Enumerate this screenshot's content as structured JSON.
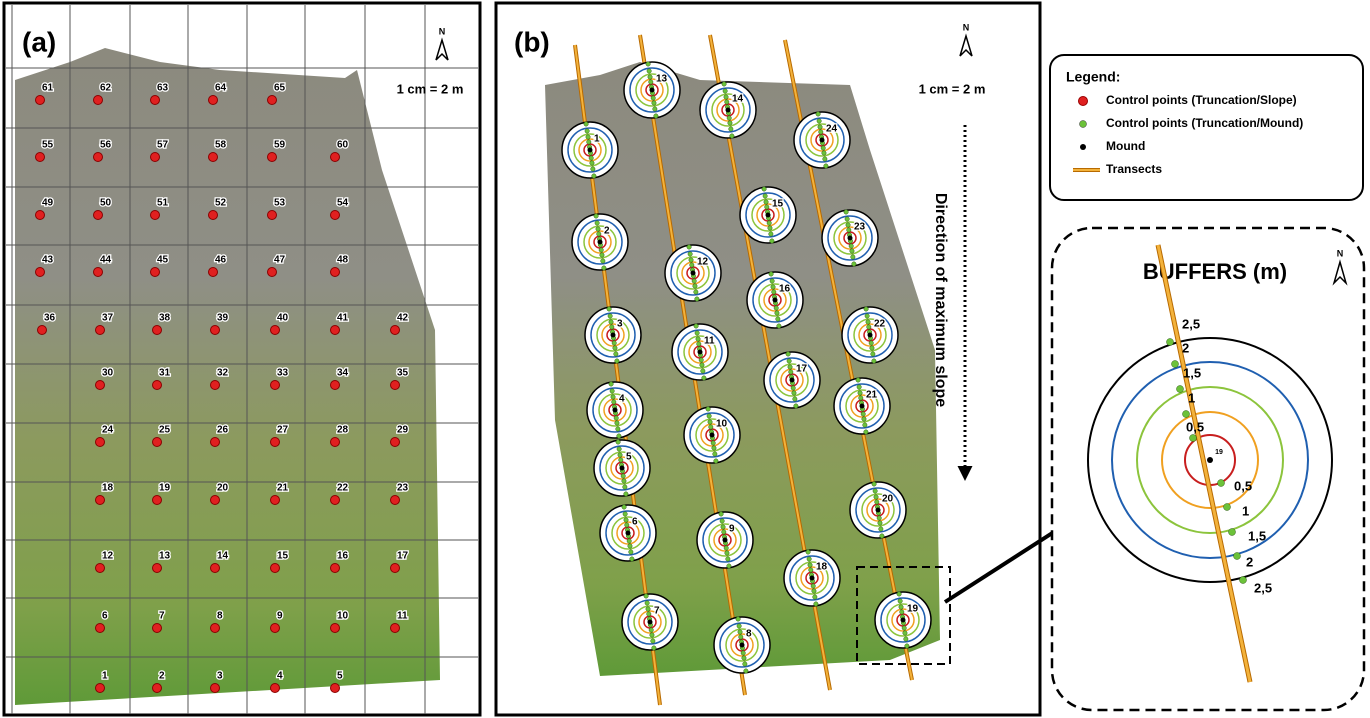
{
  "panel_a": {
    "label": "(a)",
    "north": "N",
    "scale": "1 cm = 2 m",
    "points": [
      1,
      2,
      3,
      4,
      5,
      6,
      7,
      8,
      9,
      10,
      11,
      12,
      13,
      14,
      15,
      16,
      17,
      18,
      19,
      20,
      21,
      22,
      23,
      24,
      25,
      26,
      27,
      28,
      29,
      30,
      31,
      32,
      33,
      34,
      35,
      36,
      37,
      38,
      39,
      40,
      41,
      42,
      43,
      44,
      45,
      46,
      47,
      48,
      49,
      50,
      51,
      52,
      53,
      54,
      55,
      56,
      57,
      58,
      59,
      60,
      61,
      62,
      63,
      64,
      65
    ]
  },
  "panel_b": {
    "label": "(b)",
    "north": "N",
    "scale": "1 cm = 2 m",
    "slope_label": "Direction of maximum slope",
    "mounds": [
      1,
      2,
      3,
      4,
      5,
      6,
      7,
      8,
      9,
      10,
      11,
      12,
      13,
      14,
      15,
      16,
      17,
      18,
      19,
      20,
      21,
      22,
      23,
      24
    ]
  },
  "legend": {
    "title": "Legend:",
    "items": [
      "Control points (Truncation/Slope)",
      "Control points (Truncation/Mound)",
      "Mound",
      "Transects"
    ]
  },
  "buffers": {
    "title": "BUFFERS (m)",
    "north": "N",
    "center_label": "19",
    "upper_labels": [
      "2,5",
      "2",
      "1,5",
      "1",
      "0,5"
    ],
    "lower_labels": [
      "0,5",
      "1",
      "1,5",
      "2",
      "2,5"
    ]
  }
}
